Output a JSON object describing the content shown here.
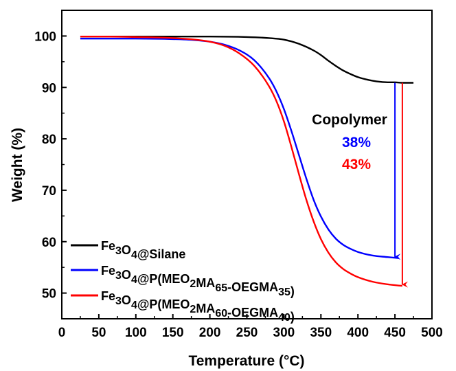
{
  "chart_data": {
    "type": "line",
    "xlabel": "Temperature (°C)",
    "ylabel": "Weight (%)",
    "xlim": [
      0,
      500
    ],
    "ylim": [
      45,
      105
    ],
    "xticks": [
      0,
      50,
      100,
      150,
      200,
      250,
      300,
      350,
      400,
      450,
      500
    ],
    "yticks": [
      50,
      60,
      70,
      80,
      90,
      100
    ],
    "grid": false,
    "legend_position": "bottom-left",
    "series": [
      {
        "key": "silane",
        "legend": [
          {
            "t": "Fe"
          },
          {
            "t": "3",
            "sub": true
          },
          {
            "t": "O"
          },
          {
            "t": "4",
            "sub": true
          },
          {
            "t": "@Silane"
          }
        ],
        "color": "#000000",
        "x": [
          25,
          50,
          100,
          150,
          200,
          250,
          280,
          300,
          320,
          340,
          350,
          360,
          370,
          380,
          390,
          400,
          410,
          420,
          430,
          440,
          450,
          460,
          475
        ],
        "y": [
          99.9,
          99.9,
          99.9,
          99.9,
          99.9,
          99.8,
          99.6,
          99.3,
          98.5,
          97.2,
          96.3,
          95.2,
          94.2,
          93.3,
          92.6,
          92.0,
          91.6,
          91.3,
          91.1,
          91.0,
          91.0,
          90.9,
          90.9
        ]
      },
      {
        "key": "p35",
        "legend": [
          {
            "t": "Fe"
          },
          {
            "t": "3",
            "sub": true
          },
          {
            "t": "O"
          },
          {
            "t": "4",
            "sub": true
          },
          {
            "t": "@P(MEO"
          },
          {
            "t": "2",
            "sub": true
          },
          {
            "t": "MA"
          },
          {
            "t": "65",
            "sub": true
          },
          {
            "t": "-OEGMA"
          },
          {
            "t": "35",
            "sub": true
          },
          {
            "t": ")"
          }
        ],
        "color": "#0000ff",
        "x": [
          25,
          50,
          100,
          150,
          180,
          200,
          220,
          240,
          260,
          280,
          290,
          300,
          310,
          320,
          330,
          340,
          350,
          360,
          370,
          380,
          390,
          400,
          420,
          440,
          455
        ],
        "y": [
          99.5,
          99.5,
          99.5,
          99.4,
          99.2,
          98.9,
          98.3,
          97.2,
          95.3,
          91.8,
          89.2,
          85.8,
          81.6,
          77.0,
          72.4,
          68.2,
          64.9,
          62.4,
          60.6,
          59.4,
          58.6,
          58.0,
          57.3,
          57.0,
          56.8
        ]
      },
      {
        "key": "p40",
        "legend": [
          {
            "t": "Fe"
          },
          {
            "t": "3",
            "sub": true
          },
          {
            "t": "O"
          },
          {
            "t": "4",
            "sub": true
          },
          {
            "t": "@P(MEO"
          },
          {
            "t": "2",
            "sub": true
          },
          {
            "t": "MA"
          },
          {
            "t": "60",
            "sub": true
          },
          {
            "t": "-OEGMA"
          },
          {
            "t": "40",
            "sub": true
          },
          {
            "t": ")"
          }
        ],
        "color": "#ff0000",
        "x": [
          25,
          50,
          100,
          150,
          180,
          200,
          220,
          240,
          260,
          280,
          290,
          300,
          310,
          320,
          330,
          340,
          350,
          360,
          370,
          380,
          390,
          400,
          420,
          440,
          460
        ],
        "y": [
          99.9,
          99.9,
          99.8,
          99.6,
          99.3,
          98.9,
          98.1,
          96.6,
          94.2,
          90.2,
          87.3,
          83.4,
          78.5,
          73.3,
          68.3,
          64.0,
          60.5,
          57.9,
          56.0,
          54.7,
          53.8,
          53.1,
          52.2,
          51.7,
          51.4
        ]
      }
    ],
    "annotations": {
      "title": "Copolymer",
      "title_color": "#000000",
      "values": [
        {
          "text": "38%",
          "color": "#0000ff"
        },
        {
          "text": "43%",
          "color": "#ff0000"
        }
      ],
      "arrows": [
        {
          "color": "#0000ff",
          "x": 450,
          "y_from": 90.9,
          "y_to": 56.8
        },
        {
          "color": "#ff0000",
          "x": 460,
          "y_from": 90.9,
          "y_to": 51.4
        }
      ]
    }
  }
}
